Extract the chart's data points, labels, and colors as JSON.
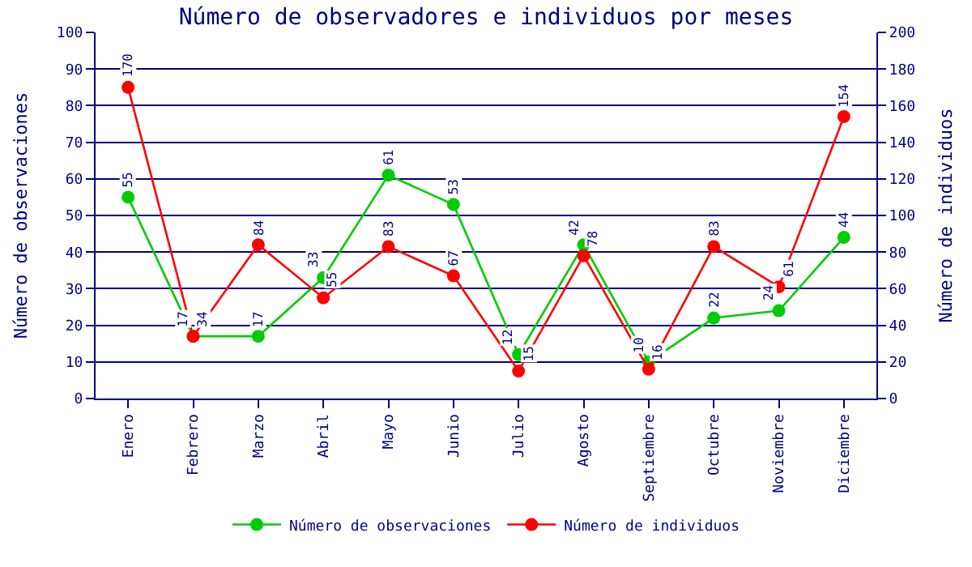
{
  "chart_data": {
    "type": "line",
    "title": "Número de observadores e individuos por meses",
    "ylabel": "Número de observaciones",
    "y2label": "Número de individuos",
    "categories": [
      "Enero",
      "Febrero",
      "Marzo",
      "Abril",
      "Mayo",
      "Junio",
      "Julio",
      "Agosto",
      "Septiembre",
      "Octubre",
      "Noviembre",
      "Diciembre"
    ],
    "series": [
      {
        "name": "Número de observaciones",
        "color": "#00cc00",
        "values": [
          55,
          17,
          17,
          33,
          61,
          53,
          12,
          42,
          10,
          22,
          24,
          44
        ]
      },
      {
        "name": "Número de individuos",
        "color": "#ff0000",
        "axis": "y2",
        "values": [
          170,
          34,
          84,
          55,
          83,
          67,
          15,
          78,
          16,
          83,
          61,
          154
        ]
      }
    ],
    "ylim": [
      0,
      100
    ],
    "yticks": [
      0,
      10,
      20,
      30,
      40,
      50,
      60,
      70,
      80,
      90,
      100
    ],
    "y2lim": [
      0,
      200
    ],
    "y2ticks": [
      0,
      20,
      40,
      60,
      80,
      100,
      120,
      140,
      160,
      180,
      200
    ],
    "grid": "y",
    "legend": "bottom",
    "marker": "circle",
    "line_style": "solid",
    "data_labels": true
  }
}
